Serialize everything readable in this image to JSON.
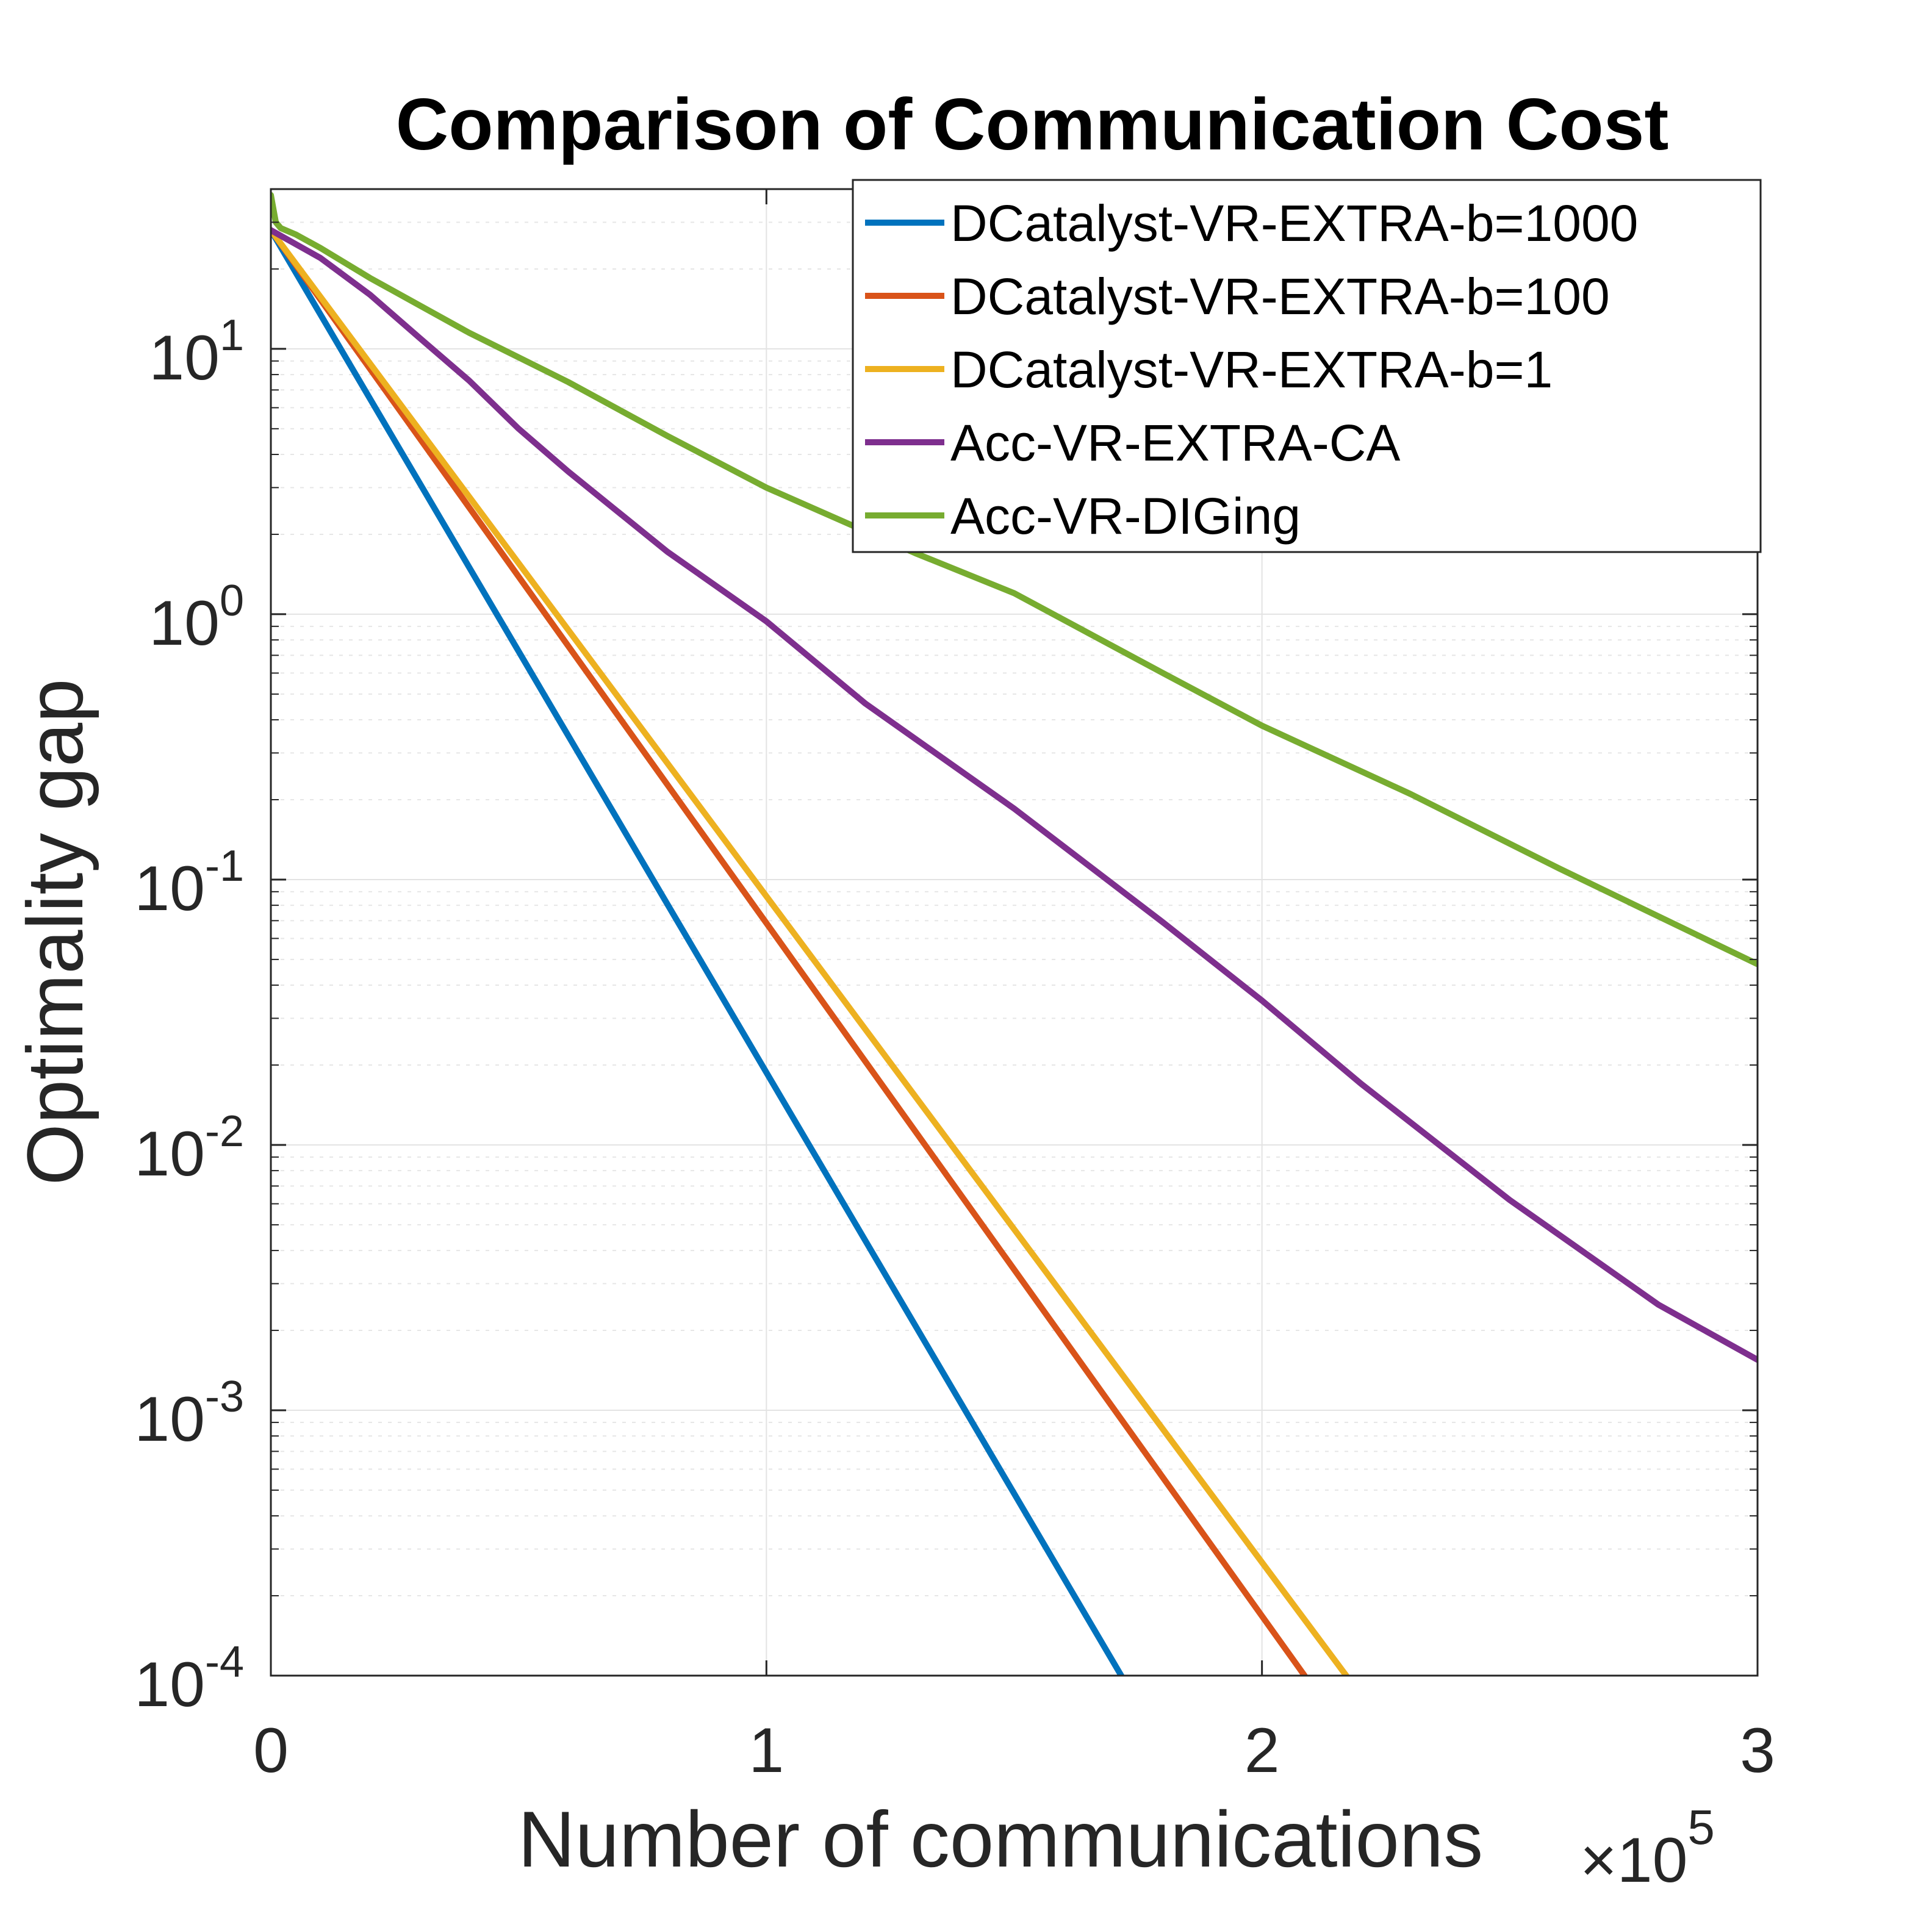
{
  "chart_data": {
    "type": "line",
    "title": "Comparison of Communication Cost",
    "xlabel": "Number of communications",
    "ylabel": "Optimality gap",
    "x_multiplier": {
      "prefix": "×10",
      "exponent": "5"
    },
    "x_scale": 100000,
    "xlim": [
      0,
      300000
    ],
    "ylim": [
      0.0001,
      40
    ],
    "yscale": "log",
    "grid": true,
    "x_ticks": [
      {
        "value": 0,
        "label": "0"
      },
      {
        "value": 100000,
        "label": "1"
      },
      {
        "value": 200000,
        "label": "2"
      },
      {
        "value": 300000,
        "label": "3"
      }
    ],
    "y_ticks": [
      {
        "value": 10,
        "base": "10",
        "exp": "1"
      },
      {
        "value": 1,
        "base": "10",
        "exp": "0"
      },
      {
        "value": 0.1,
        "base": "10",
        "exp": "-1"
      },
      {
        "value": 0.01,
        "base": "10",
        "exp": "-2"
      },
      {
        "value": 0.001,
        "base": "10",
        "exp": "-3"
      },
      {
        "value": 0.0001,
        "base": "10",
        "exp": "-4"
      }
    ],
    "legend_position": "top-right",
    "series": [
      {
        "name": "DCatalyst-VR-EXTRA-b=1000",
        "color": "#0072BD",
        "x": [
          0,
          171600
        ],
        "y": [
          28,
          0.0001
        ]
      },
      {
        "name": "DCatalyst-VR-EXTRA-b=100",
        "color": "#D95319",
        "x": [
          0,
          208600
        ],
        "y": [
          28,
          0.0001
        ]
      },
      {
        "name": "DCatalyst-VR-EXTRA-b=1",
        "color": "#EDB120",
        "x": [
          0,
          217000
        ],
        "y": [
          28,
          0.0001
        ]
      },
      {
        "name": "Acc-VR-EXTRA-CA",
        "color": "#7E2F8E",
        "x": [
          0,
          10000,
          20000,
          30000,
          40000,
          50000,
          60000,
          80000,
          100000,
          120000,
          150000,
          180000,
          200000,
          220000,
          250000,
          280000,
          300000
        ],
        "y": [
          28,
          22,
          16,
          11,
          7.6,
          5.0,
          3.45,
          1.72,
          0.94,
          0.46,
          0.185,
          0.069,
          0.035,
          0.017,
          0.0062,
          0.0025,
          0.00155
        ]
      },
      {
        "name": "Acc-VR-DIGing",
        "color": "#77AC30",
        "x": [
          0,
          1000,
          2000,
          5000,
          10000,
          20000,
          40000,
          60000,
          80000,
          100000,
          130000,
          150000,
          180000,
          200000,
          230000,
          260000,
          300000
        ],
        "y": [
          38,
          30,
          28.5,
          27,
          24,
          18.5,
          11.5,
          7.5,
          4.7,
          3.0,
          1.7,
          1.2,
          0.6,
          0.38,
          0.21,
          0.11,
          0.048
        ]
      }
    ]
  }
}
